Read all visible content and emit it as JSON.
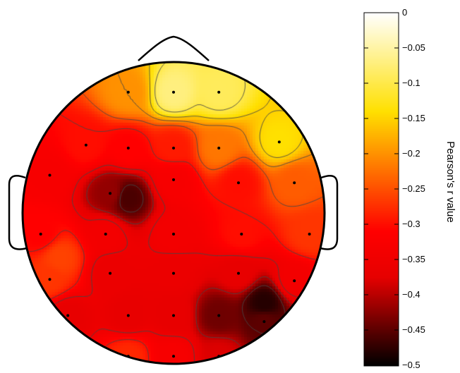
{
  "chart_data": {
    "type": "heatmap",
    "subtype": "eeg-topographic-map",
    "title": "",
    "colorbar": {
      "label": "Pearson's r value",
      "min": -0.5,
      "max": 0,
      "ticks": [
        0,
        -0.05,
        -0.1,
        -0.15,
        -0.2,
        -0.25,
        -0.3,
        -0.35,
        -0.4,
        -0.45,
        -0.5
      ],
      "tick_labels": [
        "0",
        "−0.05",
        "−0.1",
        "−0.15",
        "−0.2",
        "−0.25",
        "−0.3",
        "−0.35",
        "−0.4",
        "−0.45",
        "−0.5"
      ],
      "colormap": "hot",
      "colors": [
        "#000000",
        "#e60000",
        "#ff0000",
        "#ffe000",
        "#ffffff"
      ]
    },
    "contour_lines": true,
    "electrode_markers": true,
    "electrodes": [
      {
        "x": -0.3,
        "y": -0.8,
        "r": -0.2
      },
      {
        "x": 0.0,
        "y": -0.8,
        "r": -0.07
      },
      {
        "x": 0.3,
        "y": -0.8,
        "r": -0.09
      },
      {
        "x": -0.58,
        "y": -0.45,
        "r": -0.3
      },
      {
        "x": -0.3,
        "y": -0.43,
        "r": -0.31
      },
      {
        "x": 0.0,
        "y": -0.43,
        "r": -0.29
      },
      {
        "x": 0.3,
        "y": -0.43,
        "r": -0.22
      },
      {
        "x": 0.7,
        "y": -0.47,
        "r": -0.14
      },
      {
        "x": -0.82,
        "y": -0.25,
        "r": -0.33
      },
      {
        "x": -0.42,
        "y": -0.13,
        "r": -0.42
      },
      {
        "x": 0.0,
        "y": -0.22,
        "r": -0.33
      },
      {
        "x": 0.43,
        "y": -0.2,
        "r": -0.3
      },
      {
        "x": 0.8,
        "y": -0.2,
        "r": -0.24
      },
      {
        "x": -0.88,
        "y": 0.14,
        "r": -0.31
      },
      {
        "x": -0.45,
        "y": 0.14,
        "r": -0.34
      },
      {
        "x": 0.0,
        "y": 0.14,
        "r": -0.34
      },
      {
        "x": 0.45,
        "y": 0.14,
        "r": -0.3
      },
      {
        "x": 0.9,
        "y": 0.14,
        "r": -0.27
      },
      {
        "x": -0.82,
        "y": 0.44,
        "r": -0.27
      },
      {
        "x": -0.42,
        "y": 0.4,
        "r": -0.36
      },
      {
        "x": 0.0,
        "y": 0.4,
        "r": -0.36
      },
      {
        "x": 0.43,
        "y": 0.4,
        "r": -0.37
      },
      {
        "x": 0.8,
        "y": 0.45,
        "r": -0.34
      },
      {
        "x": -0.7,
        "y": 0.68,
        "r": -0.37
      },
      {
        "x": -0.3,
        "y": 0.68,
        "r": -0.37
      },
      {
        "x": 0.0,
        "y": 0.68,
        "r": -0.37
      },
      {
        "x": 0.3,
        "y": 0.68,
        "r": -0.44
      },
      {
        "x": 0.6,
        "y": 0.72,
        "r": -0.45
      },
      {
        "x": -0.3,
        "y": 0.95,
        "r": -0.28
      },
      {
        "x": 0.0,
        "y": 0.95,
        "r": -0.33
      },
      {
        "x": 0.3,
        "y": 0.95,
        "r": -0.38
      },
      {
        "x": -0.75,
        "y": 0.3,
        "r": -0.26
      },
      {
        "x": -0.3,
        "y": -0.1,
        "r": -0.46
      },
      {
        "x": 0.6,
        "y": 0.6,
        "r": -0.48
      }
    ]
  }
}
